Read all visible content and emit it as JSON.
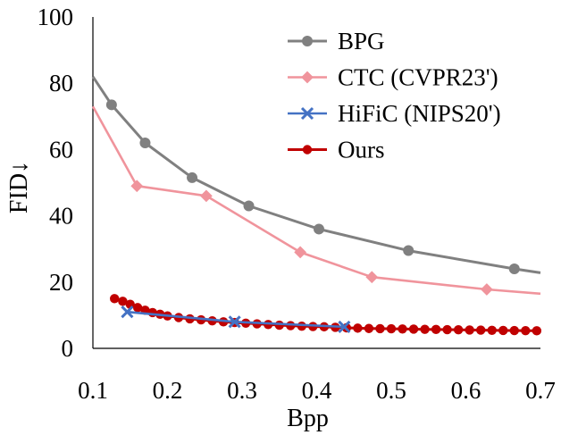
{
  "chart_data": {
    "type": "line",
    "title": "",
    "xlabel": "Bpp",
    "ylabel": "FID↓",
    "xlim": [
      0.1,
      0.7
    ],
    "ylim": [
      0,
      100
    ],
    "xticks": [
      0.1,
      0.2,
      0.3,
      0.4,
      0.5,
      0.6,
      0.7
    ],
    "xtick_labels": [
      "0.1",
      "0.2",
      "0.3",
      "0.4",
      "0.5",
      "0.6",
      "0.7"
    ],
    "yticks": [
      0,
      20,
      40,
      60,
      80,
      100
    ],
    "ytick_labels": [
      "0",
      "20",
      "40",
      "60",
      "80",
      "100"
    ],
    "grid": false,
    "legend_position": "top-right",
    "series": [
      {
        "name": "BPG",
        "color": "#808080",
        "marker": "circle",
        "x": [
          0.1,
          0.125,
          0.17,
          0.233,
          0.309,
          0.403,
          0.523,
          0.665,
          0.7
        ],
        "y": [
          82,
          73.5,
          62,
          51.5,
          43,
          36,
          29.5,
          24,
          22.8
        ],
        "marked": [
          false,
          true,
          true,
          true,
          true,
          true,
          true,
          true,
          false
        ]
      },
      {
        "name": "CTC (CVPR23')",
        "color": "#F0949C",
        "marker": "diamond",
        "x": [
          0.1,
          0.159,
          0.252,
          0.378,
          0.474,
          0.628,
          0.7
        ],
        "y": [
          73,
          49,
          46,
          29,
          21.5,
          17.8,
          16.5
        ],
        "marked": [
          false,
          true,
          true,
          true,
          true,
          true,
          false
        ]
      },
      {
        "name": "HiFiC (NIPS20')",
        "color": "#4472C4",
        "marker": "x",
        "x": [
          0.146,
          0.29,
          0.437
        ],
        "y": [
          11,
          8,
          6.5
        ],
        "marked": [
          true,
          true,
          true
        ]
      },
      {
        "name": "Ours",
        "color": "#C00000",
        "marker": "circle",
        "x": [
          0.129,
          0.14,
          0.15,
          0.16,
          0.17,
          0.18,
          0.19,
          0.2,
          0.215,
          0.23,
          0.245,
          0.26,
          0.275,
          0.29,
          0.305,
          0.32,
          0.335,
          0.35,
          0.365,
          0.38,
          0.395,
          0.41,
          0.425,
          0.44,
          0.455,
          0.47,
          0.485,
          0.5,
          0.515,
          0.53,
          0.545,
          0.56,
          0.575,
          0.59,
          0.605,
          0.62,
          0.635,
          0.65,
          0.665,
          0.68,
          0.695
        ],
        "y": [
          15,
          14.2,
          13.3,
          12.3,
          11.5,
          10.8,
          10.3,
          9.8,
          9.3,
          8.9,
          8.6,
          8.3,
          8,
          7.8,
          7.6,
          7.4,
          7.2,
          7,
          6.85,
          6.7,
          6.6,
          6.5,
          6.35,
          6.2,
          6.1,
          6,
          5.95,
          5.9,
          5.85,
          5.8,
          5.75,
          5.7,
          5.65,
          5.6,
          5.55,
          5.5,
          5.45,
          5.4,
          5.38,
          5.35,
          5.3
        ],
        "marked": [
          true,
          true,
          true,
          true,
          true,
          true,
          true,
          true,
          true,
          true,
          true,
          true,
          true,
          true,
          true,
          true,
          true,
          true,
          true,
          true,
          true,
          true,
          true,
          true,
          true,
          true,
          true,
          true,
          true,
          true,
          true,
          true,
          true,
          true,
          true,
          true,
          true,
          true,
          true,
          true,
          true
        ]
      }
    ]
  }
}
